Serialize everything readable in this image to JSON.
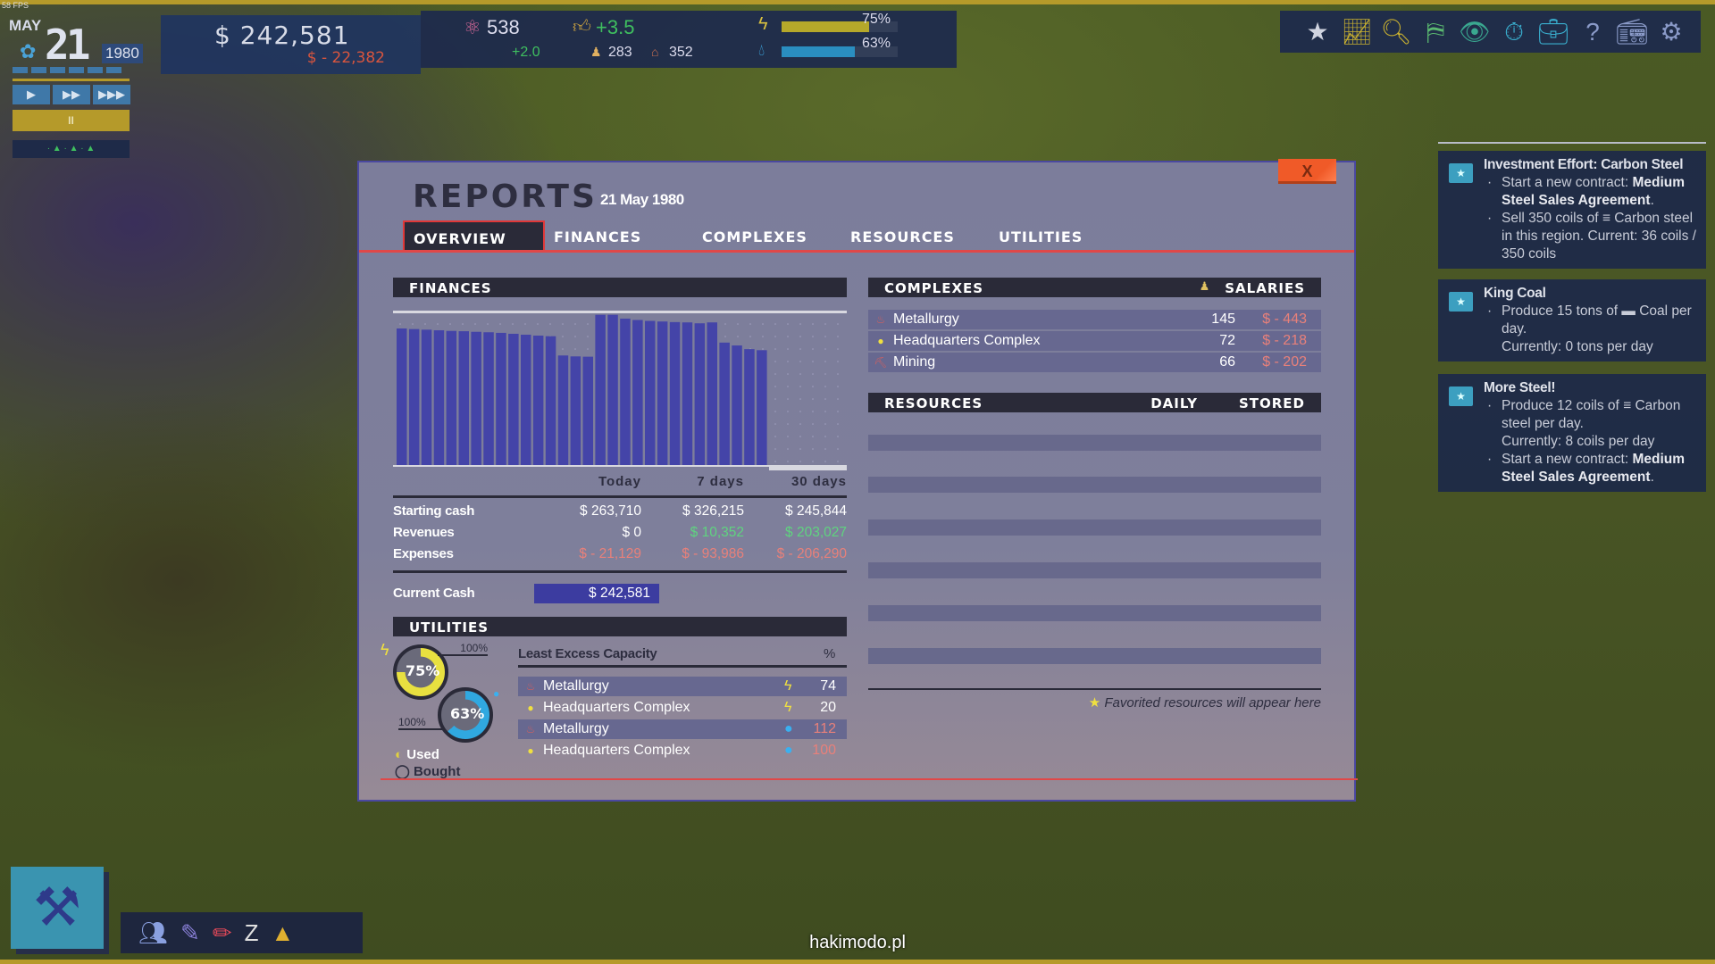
{
  "hud": {
    "fps": "58 FPS",
    "date": {
      "month": "MAY",
      "day": "21",
      "year": "1980"
    },
    "speed_buttons": [
      "▶",
      "▶▶",
      "▶▶▶"
    ],
    "pause_label": "II",
    "money": {
      "cash": "$ 242,581",
      "change": "$ - 22,382"
    },
    "research": {
      "value": "538",
      "delta": "+2.0",
      "icon": "atom-icon"
    },
    "approval": {
      "value": "+3.5",
      "icon": "thumbs-up-icon"
    },
    "workers": "283",
    "housing": "352",
    "power": {
      "percent": 75,
      "label": "75%",
      "color": "#b5a82a"
    },
    "water": {
      "percent": 63,
      "label": "63%",
      "color": "#2a8ec0"
    }
  },
  "toolbar_icons": [
    "favorites-icon",
    "statistics-icon",
    "research-icon",
    "land-icon",
    "overview-map-icon",
    "contracts-icon",
    "objectives-icon",
    "help-icon",
    "radio-icon",
    "settings-icon"
  ],
  "quests": [
    {
      "title": "Investment Effort: Carbon Steel",
      "items": [
        {
          "bullet": true,
          "text": "Start a new contract: ",
          "bold": "Medium Steel Sales Agreement",
          "tail": "."
        },
        {
          "bullet": true,
          "text": "Sell 350 coils of ≡ Carbon steel in this region. Current: 36 coils / 350 coils",
          "bold": "",
          "tail": ""
        }
      ]
    },
    {
      "title": "King Coal",
      "items": [
        {
          "bullet": true,
          "text": "Produce 15 tons of ▬ Coal per day.",
          "bold": "",
          "tail": ""
        },
        {
          "bullet": false,
          "text": "Currently: 0 tons per day",
          "bold": "",
          "tail": ""
        }
      ]
    },
    {
      "title": "More Steel!",
      "items": [
        {
          "bullet": true,
          "text": "Produce 12 coils of ≡ Carbon steel per day.",
          "bold": "",
          "tail": ""
        },
        {
          "bullet": false,
          "text": "Currently: 8 coils per day",
          "bold": "",
          "tail": ""
        },
        {
          "bullet": true,
          "text": "Start a new contract: ",
          "bold": "Medium Steel Sales Agreement",
          "tail": "."
        }
      ]
    }
  ],
  "reports": {
    "title": "REPORTS",
    "date": "21 May 1980",
    "close_label": "X",
    "tabs": [
      "OVERVIEW",
      "FINANCES",
      "COMPLEXES",
      "RESOURCES",
      "UTILITIES"
    ],
    "active_tab": "OVERVIEW",
    "finances": {
      "header": "FINANCES",
      "columns": [
        "Today",
        "7 days",
        "30 days"
      ],
      "rows": [
        {
          "label": "Starting cash",
          "values": [
            "$ 263,710",
            "$ 326,215",
            "$ 245,844"
          ],
          "tone": [
            "n",
            "n",
            "n"
          ]
        },
        {
          "label": "Revenues",
          "values": [
            "$ 0",
            "$ 10,352",
            "$ 203,027"
          ],
          "tone": [
            "n",
            "g",
            "g"
          ]
        },
        {
          "label": "Expenses",
          "values": [
            "$ - 21,129",
            "$ - 93,986",
            "$ - 206,290"
          ],
          "tone": [
            "r",
            "r",
            "r"
          ]
        }
      ],
      "current_cash_label": "Current Cash",
      "current_cash": "$ 242,581"
    },
    "complexes": {
      "header": "COMPLEXES",
      "salaries_header": "SALARIES",
      "rows": [
        {
          "name": "Metallurgy",
          "workers": "145",
          "salary": "$ - 443",
          "icon": "metallurgy-icon"
        },
        {
          "name": "Headquarters Complex",
          "workers": "72",
          "salary": "$ - 218",
          "icon": "headquarters-icon"
        },
        {
          "name": "Mining",
          "workers": "66",
          "salary": "$ - 202",
          "icon": "mining-icon"
        }
      ]
    },
    "resources": {
      "header": "RESOURCES",
      "daily": "DAILY",
      "stored": "STORED",
      "empty_note": "Favorited resources will appear here"
    },
    "utilities": {
      "header": "UTILITIES",
      "power_used": 75,
      "power_label": "75%",
      "power_cap": "100%",
      "water_used": 63,
      "water_label": "63%",
      "water_cap": "100%",
      "legend_used": "Used",
      "legend_bought": "Bought",
      "table_header": "Least Excess Capacity",
      "pct_header": "%",
      "rows": [
        {
          "name": "Metallurgy",
          "type": "power",
          "value": "74",
          "warn": false
        },
        {
          "name": "Headquarters Complex",
          "type": "power",
          "value": "20",
          "warn": false
        },
        {
          "name": "Metallurgy",
          "type": "water",
          "value": "112",
          "warn": true
        },
        {
          "name": "Headquarters Complex",
          "type": "water",
          "value": "100",
          "warn": true
        }
      ]
    }
  },
  "chart_data": {
    "type": "bar",
    "title": "",
    "ylim": [
      0,
      100
    ],
    "values": [
      90.0,
      89.6,
      89.2,
      88.8,
      88.4,
      88.2,
      87.8,
      87.5,
      87.1,
      86.5,
      85.9,
      85.3,
      84.9,
      72.2,
      71.6,
      71.4,
      99.0,
      99.0,
      96.5,
      95.6,
      95.0,
      94.6,
      94.2,
      94.0,
      93.4,
      94.0,
      80.7,
      78.8,
      76.4,
      75.7
    ],
    "bar_color": "#4444a8",
    "grid": true
  },
  "bottom_toolbar_icons": [
    "population-icon",
    "communication-icon",
    "draw-road-icon",
    "logistics-icon",
    "traffic-cone-icon"
  ],
  "watermark": "hakimodo.pl"
}
